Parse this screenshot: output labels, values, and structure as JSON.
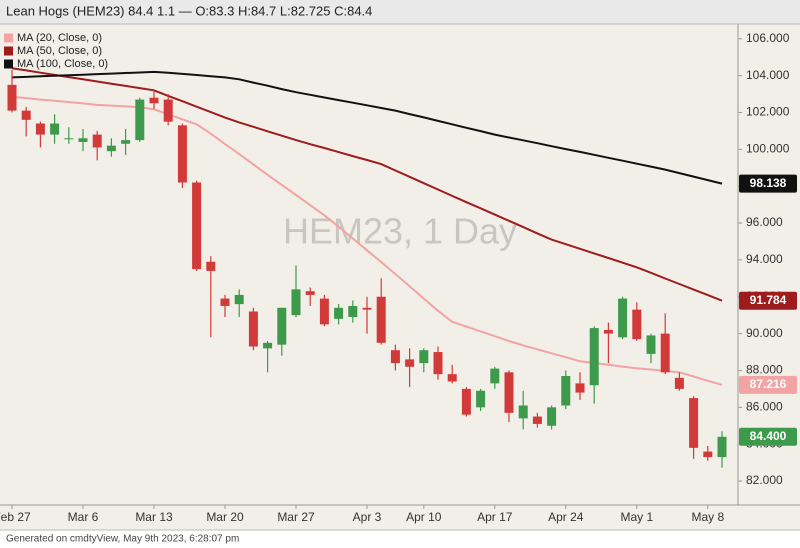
{
  "chart_data": {
    "type": "candlestick",
    "title": "Lean Hogs (HEM23) 84.4 1.1 — O:83.3 H:84.7 L:82.725 C:84.4",
    "watermark": "HEM23, 1 Day",
    "footer": "Generated on cmdtyView, May 9th 2023, 6:28:07 pm",
    "categories": [
      "Feb 27",
      null,
      null,
      null,
      null,
      "Mar 6",
      null,
      null,
      null,
      null,
      "Mar 13",
      null,
      null,
      null,
      null,
      "Mar 20",
      null,
      null,
      null,
      null,
      "Mar 27",
      null,
      null,
      null,
      null,
      "Apr 3",
      null,
      null,
      null,
      "Apr 10",
      null,
      null,
      null,
      null,
      "Apr 17",
      null,
      null,
      null,
      null,
      "Apr 24",
      null,
      null,
      null,
      null,
      "May 1",
      null,
      null,
      null,
      null,
      "May 8",
      null
    ],
    "open": [
      103.5,
      102.1,
      101.4,
      100.8,
      100.55,
      100.4,
      100.8,
      99.9,
      100.3,
      100.5,
      102.8,
      102.7,
      101.3,
      98.2,
      93.9,
      91.9,
      91.6,
      91.2,
      89.2,
      89.4,
      91.0,
      92.3,
      91.9,
      90.8,
      90.9,
      91.4,
      92.0,
      89.1,
      88.6,
      88.4,
      89.0,
      87.8,
      87.0,
      86.0,
      87.3,
      87.9,
      85.4,
      85.5,
      85.0,
      86.1,
      87.3,
      87.2,
      90.2,
      89.8,
      91.3,
      88.9,
      90.0,
      87.6,
      86.5,
      83.6,
      83.3
    ],
    "high": [
      104.3,
      102.3,
      101.5,
      101.9,
      101.2,
      101.1,
      101.0,
      100.6,
      101.1,
      102.8,
      103.2,
      103.0,
      101.4,
      98.3,
      94.2,
      92.1,
      92.4,
      91.4,
      89.6,
      91.4,
      93.7,
      92.5,
      92.1,
      91.6,
      91.8,
      92.0,
      93.0,
      89.4,
      89.2,
      89.2,
      89.3,
      88.3,
      87.1,
      87.0,
      88.2,
      88.0,
      86.9,
      85.7,
      86.1,
      88.0,
      87.9,
      90.4,
      90.6,
      92.0,
      91.7,
      90.0,
      91.1,
      87.9,
      86.6,
      83.9,
      84.7
    ],
    "low": [
      102.0,
      100.7,
      100.1,
      100.3,
      100.3,
      99.9,
      99.4,
      99.6,
      99.7,
      100.4,
      102.2,
      101.3,
      97.9,
      93.4,
      89.8,
      90.9,
      90.9,
      89.1,
      87.9,
      88.8,
      90.9,
      91.5,
      90.4,
      90.5,
      90.6,
      90.0,
      89.4,
      88.0,
      87.1,
      87.9,
      87.5,
      87.3,
      85.5,
      85.8,
      87.0,
      85.2,
      84.8,
      84.9,
      84.8,
      85.9,
      86.4,
      86.2,
      88.4,
      89.7,
      89.6,
      88.4,
      87.8,
      86.9,
      83.2,
      83.1,
      82.725
    ],
    "close": [
      102.1,
      101.6,
      100.8,
      101.4,
      100.6,
      100.6,
      100.1,
      100.2,
      100.5,
      102.7,
      102.5,
      101.5,
      98.2,
      93.5,
      93.4,
      91.5,
      92.1,
      89.3,
      89.5,
      91.4,
      92.4,
      92.1,
      90.5,
      91.4,
      91.5,
      91.3,
      89.5,
      88.4,
      88.2,
      89.1,
      87.8,
      87.4,
      85.6,
      86.9,
      88.1,
      85.7,
      86.1,
      85.1,
      86.0,
      87.7,
      86.8,
      90.3,
      90.0,
      91.9,
      89.7,
      89.9,
      87.9,
      87.0,
      83.8,
      83.3,
      84.4
    ],
    "last_close_label": "84.400",
    "up_color": "#3d9a4b",
    "down_color": "#d23a3a",
    "series": [
      {
        "name": "MA (20, Close, 0)",
        "color": "#f2a3a3",
        "values": [
          102.85,
          102.78,
          102.7,
          102.63,
          102.56,
          102.49,
          102.41,
          102.37,
          102.33,
          102.28,
          102.17,
          101.9,
          101.63,
          101.36,
          100.85,
          100.29,
          99.74,
          99.18,
          98.62,
          98.07,
          97.52,
          96.97,
          96.42,
          95.8,
          95.16,
          94.52,
          93.88,
          93.23,
          92.57,
          91.9,
          91.24,
          90.64,
          90.38,
          90.12,
          89.86,
          89.6,
          89.36,
          89.15,
          88.93,
          88.72,
          88.5,
          88.4,
          88.31,
          88.21,
          88.12,
          88.05,
          87.97,
          87.9,
          87.67,
          87.44,
          87.216
        ]
      },
      {
        "name": "MA (50, Close, 0)",
        "color": "#9e1c1c",
        "values": [
          104.4,
          104.28,
          104.16,
          104.04,
          103.92,
          103.8,
          103.68,
          103.56,
          103.44,
          103.32,
          103.2,
          102.9,
          102.61,
          102.31,
          102.02,
          101.72,
          101.46,
          101.22,
          100.98,
          100.74,
          100.5,
          100.28,
          100.07,
          99.85,
          99.63,
          99.42,
          99.2,
          98.85,
          98.51,
          98.16,
          97.82,
          97.47,
          97.13,
          96.8,
          96.46,
          96.12,
          95.78,
          95.44,
          95.1,
          94.85,
          94.6,
          94.35,
          94.1,
          93.85,
          93.6,
          93.3,
          92.99,
          92.69,
          92.39,
          92.09,
          91.784
        ]
      },
      {
        "name": "MA (100, Close, 0)",
        "color": "#111111",
        "values": [
          103.9,
          103.93,
          103.96,
          103.99,
          104.02,
          104.05,
          104.08,
          104.11,
          104.14,
          104.17,
          104.2,
          104.15,
          104.09,
          104.03,
          103.97,
          103.9,
          103.8,
          103.62,
          103.45,
          103.27,
          103.1,
          102.96,
          102.81,
          102.67,
          102.53,
          102.39,
          102.24,
          102.1,
          101.91,
          101.73,
          101.54,
          101.36,
          101.17,
          100.99,
          100.8,
          100.64,
          100.49,
          100.33,
          100.17,
          100.01,
          99.86,
          99.7,
          99.54,
          99.38,
          99.22,
          99.06,
          98.9,
          98.71,
          98.52,
          98.33,
          98.138
        ]
      }
    ],
    "ylim": [
      80.7,
      106.8
    ],
    "yticks": [
      {
        "value": 82,
        "label": "82.000"
      },
      {
        "value": 84,
        "label": "84.000"
      },
      {
        "value": 86,
        "label": "86.000"
      },
      {
        "value": 88,
        "label": "88.000"
      },
      {
        "value": 90,
        "label": "90.000"
      },
      {
        "value": 92,
        "label": "92.000"
      },
      {
        "value": 94,
        "label": "94.000"
      },
      {
        "value": 96,
        "label": "96.000"
      },
      {
        "value": 98,
        "label": "98.000"
      },
      {
        "value": 100,
        "label": "100.000"
      },
      {
        "value": 102,
        "label": "102.000"
      },
      {
        "value": 104,
        "label": "104.000"
      },
      {
        "value": 106,
        "label": "106.000"
      }
    ],
    "grid": false
  }
}
